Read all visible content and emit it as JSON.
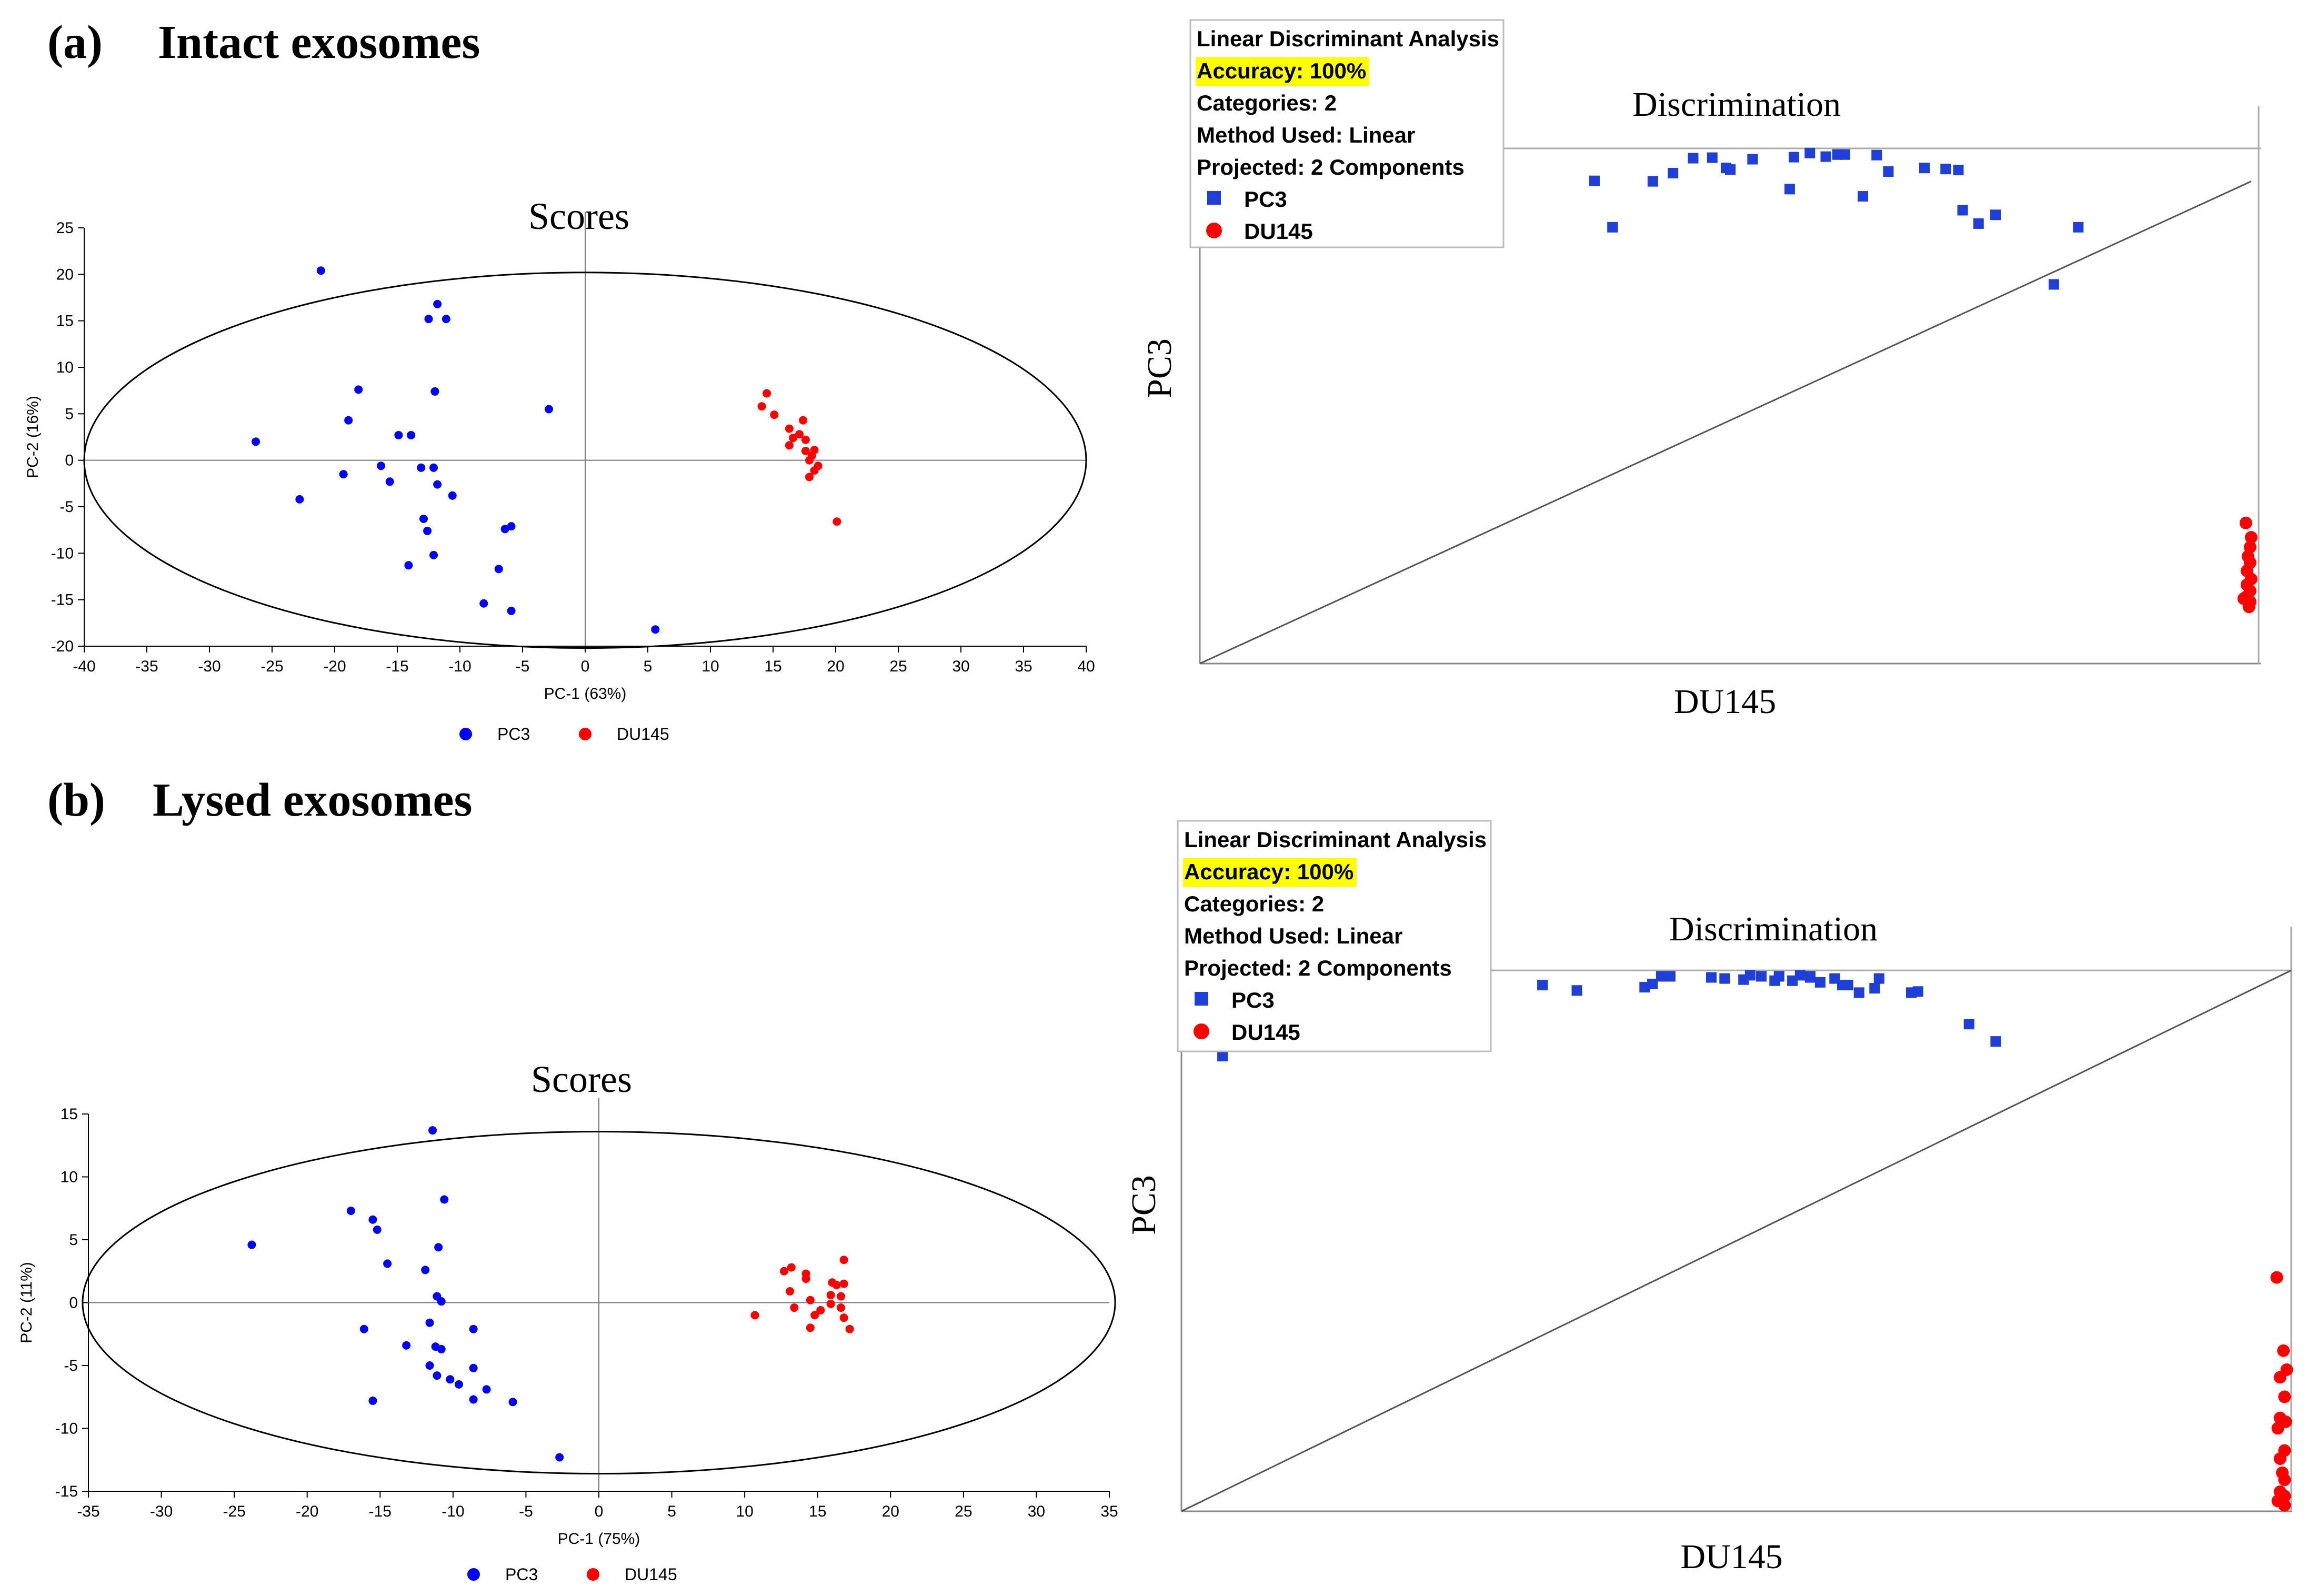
{
  "panels": {
    "a": {
      "letter": "(a)",
      "title": "Intact exosomes"
    },
    "b": {
      "letter": "(b)",
      "title": "Lysed exosomes"
    }
  },
  "colors": {
    "pc3": "#0000ff",
    "pc3_lda": "#1f3fd8",
    "du145": "#ff0000",
    "highlight": "#ffff00"
  },
  "chart_data": [
    {
      "id": "scores-a",
      "type": "scatter",
      "title": "Scores",
      "xlabel": "PC-1 (63%)",
      "ylabel": "PC-2 (16%)",
      "xlim": [
        -40,
        40
      ],
      "ylim": [
        -20,
        25
      ],
      "xticks": [
        -40,
        -35,
        -30,
        -25,
        -20,
        -15,
        -10,
        -5,
        0,
        5,
        10,
        15,
        20,
        25,
        30,
        35,
        40
      ],
      "yticks": [
        -20,
        -15,
        -10,
        -5,
        0,
        5,
        10,
        15,
        20,
        25
      ],
      "ellipse": {
        "cx": 0,
        "cy": 0,
        "rx": 40,
        "ry": 20.2
      },
      "legend": [
        "PC3",
        "DU145"
      ],
      "series": [
        {
          "name": "PC3",
          "points": [
            [
              -21.1,
              20.4
            ],
            [
              -11.8,
              16.8
            ],
            [
              -12.5,
              15.2
            ],
            [
              -11.1,
              15.2
            ],
            [
              -18.1,
              7.6
            ],
            [
              -12,
              7.4
            ],
            [
              -2.9,
              5.5
            ],
            [
              -18.9,
              4.3
            ],
            [
              -14.9,
              2.7
            ],
            [
              -13.9,
              2.7
            ],
            [
              -26.3,
              2
            ],
            [
              -16.3,
              -0.6
            ],
            [
              -13.1,
              -0.8
            ],
            [
              -12.1,
              -0.8
            ],
            [
              -19.3,
              -1.5
            ],
            [
              -15.6,
              -2.3
            ],
            [
              -11.8,
              -2.6
            ],
            [
              -10.6,
              -3.8
            ],
            [
              -22.8,
              -4.2
            ],
            [
              -12.9,
              -6.3
            ],
            [
              -5.9,
              -7.1
            ],
            [
              -6.4,
              -7.4
            ],
            [
              -12.6,
              -7.6
            ],
            [
              -12.1,
              -10.2
            ],
            [
              -14.1,
              -11.3
            ],
            [
              -6.9,
              -11.7
            ],
            [
              -8.1,
              -15.4
            ],
            [
              -5.9,
              -16.2
            ],
            [
              5.6,
              -18.2
            ]
          ]
        },
        {
          "name": "DU145",
          "points": [
            [
              14.5,
              7.2
            ],
            [
              14.1,
              5.8
            ],
            [
              15.1,
              4.9
            ],
            [
              17.4,
              4.3
            ],
            [
              16.3,
              3.4
            ],
            [
              17.1,
              2.8
            ],
            [
              16.6,
              2.4
            ],
            [
              17.6,
              2.2
            ],
            [
              16.3,
              1.6
            ],
            [
              18.3,
              1.1
            ],
            [
              17.6,
              1
            ],
            [
              18.1,
              0.5
            ],
            [
              17.9,
              0
            ],
            [
              18.6,
              -0.6
            ],
            [
              18.3,
              -1.1
            ],
            [
              17.9,
              -1.8
            ],
            [
              20.1,
              -6.6
            ]
          ]
        }
      ]
    },
    {
      "id": "lda-a",
      "type": "scatter",
      "title": "Discrimination",
      "xlabel": "DU145",
      "ylabel": "PC3",
      "xlim": [
        0,
        1
      ],
      "ylim": [
        0,
        1
      ],
      "diagonal": [
        [
          0,
          0
        ],
        [
          0.991,
          0.936
        ]
      ],
      "reference_lines": {
        "x": 0.998,
        "y": 1.0
      },
      "info_box": {
        "title": "Linear Discriminant Analysis",
        "accuracy": "Accuracy: 100%",
        "categories": "Categories: 2",
        "method": "Method Used: Linear",
        "projected": "Projected: 2 Components"
      },
      "legend": [
        "PC3",
        "DU145"
      ],
      "series": [
        {
          "name": "PC3",
          "marker": "square",
          "points": [
            [
              0.372,
              0.937
            ],
            [
              0.427,
              0.936
            ],
            [
              0.446,
              0.952
            ],
            [
              0.465,
              0.981
            ],
            [
              0.483,
              0.982
            ],
            [
              0.496,
              0.962
            ],
            [
              0.5,
              0.959
            ],
            [
              0.521,
              0.979
            ],
            [
              0.556,
              0.921
            ],
            [
              0.56,
              0.983
            ],
            [
              0.575,
              0.991
            ],
            [
              0.59,
              0.984
            ],
            [
              0.601,
              0.988
            ],
            [
              0.608,
              0.988
            ],
            [
              0.625,
              0.907
            ],
            [
              0.638,
              0.987
            ],
            [
              0.649,
              0.955
            ],
            [
              0.683,
              0.962
            ],
            [
              0.703,
              0.96
            ],
            [
              0.715,
              0.958
            ],
            [
              0.719,
              0.88
            ],
            [
              0.734,
              0.854
            ],
            [
              0.75,
              0.871
            ],
            [
              0.805,
              0.736
            ],
            [
              0.828,
              0.847
            ],
            [
              0.389,
              0.847
            ]
          ]
        },
        {
          "name": "DU145",
          "marker": "circle",
          "points": [
            [
              0.986,
              0.273
            ],
            [
              0.991,
              0.245
            ],
            [
              0.99,
              0.226
            ],
            [
              0.988,
              0.208
            ],
            [
              0.99,
              0.196
            ],
            [
              0.987,
              0.18
            ],
            [
              0.991,
              0.164
            ],
            [
              0.987,
              0.153
            ],
            [
              0.99,
              0.141
            ],
            [
              0.986,
              0.129
            ],
            [
              0.99,
              0.12
            ],
            [
              0.984,
              0.126
            ],
            [
              0.989,
              0.11
            ]
          ]
        }
      ]
    },
    {
      "id": "scores-b",
      "type": "scatter",
      "title": "Scores",
      "xlabel": "PC-1 (75%)",
      "ylabel": "PC-2 (11%)",
      "xlim": [
        -35,
        35
      ],
      "ylim": [
        -15,
        15
      ],
      "xticks": [
        -35,
        -30,
        -25,
        -20,
        -15,
        -10,
        -5,
        0,
        5,
        10,
        15,
        20,
        25,
        30,
        35
      ],
      "yticks": [
        -15,
        -10,
        -5,
        0,
        5,
        10,
        15
      ],
      "ellipse": {
        "cx": 0,
        "cy": 0,
        "rx": 35.4,
        "ry": 13.6
      },
      "legend": [
        "PC3",
        "DU145"
      ],
      "series": [
        {
          "name": "PC3",
          "points": [
            [
              -11.4,
              13.7
            ],
            [
              -10.6,
              8.2
            ],
            [
              -17,
              7.3
            ],
            [
              -15.5,
              6.6
            ],
            [
              -15.2,
              5.8
            ],
            [
              -23.8,
              4.6
            ],
            [
              -11,
              4.4
            ],
            [
              -14.5,
              3.1
            ],
            [
              -11.9,
              2.6
            ],
            [
              -11.1,
              0.5
            ],
            [
              -10.8,
              0.1
            ],
            [
              -16.1,
              -2.1
            ],
            [
              -11.6,
              -1.6
            ],
            [
              -8.6,
              -2.1
            ],
            [
              -13.2,
              -3.4
            ],
            [
              -11.2,
              -3.5
            ],
            [
              -10.8,
              -3.7
            ],
            [
              -11.6,
              -5
            ],
            [
              -8.6,
              -5.2
            ],
            [
              -11.1,
              -5.8
            ],
            [
              -10.2,
              -6.1
            ],
            [
              -9.6,
              -6.5
            ],
            [
              -7.7,
              -6.9
            ],
            [
              -8.6,
              -7.7
            ],
            [
              -15.5,
              -7.8
            ],
            [
              -5.9,
              -7.9
            ],
            [
              -2.7,
              -12.3
            ]
          ]
        },
        {
          "name": "DU145",
          "points": [
            [
              16.8,
              3.4
            ],
            [
              13.2,
              2.8
            ],
            [
              12.7,
              2.5
            ],
            [
              14.2,
              2.3
            ],
            [
              14.2,
              1.9
            ],
            [
              16,
              1.6
            ],
            [
              16.8,
              1.5
            ],
            [
              16.3,
              1.4
            ],
            [
              13.1,
              0.9
            ],
            [
              15.9,
              0.6
            ],
            [
              16.6,
              0.5
            ],
            [
              14.5,
              0.2
            ],
            [
              15.9,
              -0.1
            ],
            [
              13.4,
              -0.4
            ],
            [
              16.6,
              -0.4
            ],
            [
              15.2,
              -0.6
            ],
            [
              10.7,
              -1
            ],
            [
              14.8,
              -1
            ],
            [
              16.8,
              -1.2
            ],
            [
              17.2,
              -2.1
            ],
            [
              14.5,
              -2
            ]
          ]
        }
      ]
    },
    {
      "id": "lda-b",
      "type": "scatter",
      "title": "Discrimination",
      "xlabel": "DU145",
      "ylabel": "PC3",
      "xlim": [
        0,
        1
      ],
      "ylim": [
        0,
        1
      ],
      "diagonal": [
        [
          0,
          0
        ],
        [
          0.999,
          0.997
        ]
      ],
      "reference_lines": {
        "x": 0.999,
        "y": 0.997
      },
      "info_box": {
        "title": "Linear Discriminant Analysis",
        "accuracy": "Accuracy: 100%",
        "categories": "Categories: 2",
        "method": "Method Used: Linear",
        "projected": "Projected: 2 Components"
      },
      "legend": [
        "PC3",
        "DU145"
      ],
      "series": [
        {
          "name": "PC3",
          "marker": "square",
          "points": [
            [
              0.037,
              0.839
            ],
            [
              0.325,
              0.97
            ],
            [
              0.356,
              0.96
            ],
            [
              0.417,
              0.966
            ],
            [
              0.424,
              0.972
            ],
            [
              0.432,
              0.986
            ],
            [
              0.44,
              0.986
            ],
            [
              0.477,
              0.984
            ],
            [
              0.489,
              0.982
            ],
            [
              0.506,
              0.98
            ],
            [
              0.512,
              0.988
            ],
            [
              0.522,
              0.986
            ],
            [
              0.534,
              0.978
            ],
            [
              0.538,
              0.986
            ],
            [
              0.55,
              0.978
            ],
            [
              0.557,
              0.988
            ],
            [
              0.566,
              0.986
            ],
            [
              0.575,
              0.975
            ],
            [
              0.566,
              0.984
            ],
            [
              0.588,
              0.982
            ],
            [
              0.595,
              0.97
            ],
            [
              0.6,
              0.97
            ],
            [
              0.61,
              0.956
            ],
            [
              0.624,
              0.964
            ],
            [
              0.628,
              0.982
            ],
            [
              0.657,
              0.956
            ],
            [
              0.663,
              0.958
            ],
            [
              0.709,
              0.898
            ],
            [
              0.733,
              0.866
            ]
          ]
        },
        {
          "name": "DU145",
          "marker": "circle",
          "points": [
            [
              0.986,
              0.431
            ],
            [
              0.992,
              0.296
            ],
            [
              0.995,
              0.261
            ],
            [
              0.989,
              0.247
            ],
            [
              0.993,
              0.211
            ],
            [
              0.989,
              0.172
            ],
            [
              0.994,
              0.165
            ],
            [
              0.987,
              0.153
            ],
            [
              0.993,
              0.112
            ],
            [
              0.989,
              0.097
            ],
            [
              0.991,
              0.071
            ],
            [
              0.993,
              0.058
            ],
            [
              0.989,
              0.036
            ],
            [
              0.993,
              0.028
            ],
            [
              0.987,
              0.019
            ],
            [
              0.993,
              0.011
            ]
          ]
        }
      ]
    }
  ]
}
